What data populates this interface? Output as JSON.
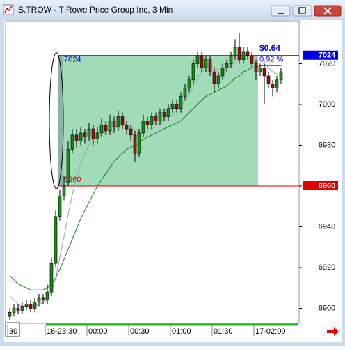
{
  "chart_data": {
    "type": "candlestick",
    "title": "S.TROW - T Rowe Price Group Inc, 3 Min",
    "categories": [
      "30",
      null,
      null,
      null,
      null,
      null,
      null,
      null,
      null,
      "16-23:30",
      null,
      null,
      null,
      null,
      null,
      null,
      null,
      null,
      null,
      "00:00",
      null,
      null,
      null,
      null,
      null,
      null,
      null,
      null,
      null,
      "00:30",
      null,
      null,
      null,
      null,
      null,
      null,
      null,
      null,
      null,
      "01:00",
      null,
      null,
      null,
      null,
      null,
      null,
      null,
      null,
      null,
      "01:30",
      null,
      null,
      null,
      null,
      null,
      null,
      null,
      null,
      null,
      "17-02:00",
      null,
      null,
      null,
      null,
      null,
      null
    ],
    "open": [
      6896,
      6898,
      6900,
      6899,
      6901,
      6902,
      6900,
      6903,
      6905,
      6904,
      6908,
      6922,
      6945,
      6955,
      6962,
      6978,
      6985,
      6982,
      6986,
      6984,
      6988,
      6983,
      6986,
      6990,
      6987,
      6992,
      6989,
      6994,
      6990,
      6988,
      6985,
      6976,
      6986,
      6992,
      6990,
      6994,
      6992,
      6996,
      6994,
      6998,
      7000,
      6998,
      7004,
      7008,
      7012,
      7020,
      7024,
      7018,
      7022,
      7016,
      7010,
      7014,
      7018,
      7020,
      7024,
      7028,
      7022,
      7026,
      7024,
      7020,
      7016,
      7018,
      7014,
      7010,
      7008,
      7012
    ],
    "high": [
      6900,
      6902,
      6902,
      6903,
      6904,
      6904,
      6905,
      6907,
      6907,
      6912,
      6925,
      6948,
      6958,
      6965,
      6982,
      6988,
      6988,
      6989,
      6988,
      6991,
      6990,
      6989,
      6993,
      6992,
      6995,
      6994,
      6997,
      6996,
      6992,
      6990,
      6987,
      6988,
      6995,
      6994,
      6996,
      6996,
      6998,
      6998,
      7000,
      7002,
      7002,
      7006,
      7010,
      7014,
      7022,
      7026,
      7026,
      7024,
      7024,
      7018,
      7016,
      7020,
      7022,
      7026,
      7032,
      7035,
      7028,
      7028,
      7026,
      7022,
      7020,
      7020,
      7016,
      7012,
      7014,
      7018
    ],
    "low": [
      6894,
      6896,
      6897,
      6897,
      6899,
      6898,
      6898,
      6901,
      6902,
      6902,
      6906,
      6920,
      6943,
      6953,
      6960,
      6976,
      6979,
      6980,
      6981,
      6982,
      6980,
      6981,
      6984,
      6985,
      6985,
      6986,
      6987,
      6988,
      6985,
      6982,
      6972,
      6974,
      6984,
      6988,
      6988,
      6990,
      6990,
      6992,
      6992,
      6996,
      6996,
      6996,
      7002,
      7006,
      7010,
      7018,
      7016,
      7016,
      7014,
      7006,
      7008,
      7012,
      7016,
      7018,
      7022,
      7020,
      7020,
      7022,
      7018,
      7012,
      7014,
      7000,
      7008,
      7004,
      7006,
      7010
    ],
    "close": [
      6898,
      6900,
      6899,
      6901,
      6902,
      6900,
      6903,
      6905,
      6904,
      6908,
      6922,
      6945,
      6955,
      6960,
      6978,
      6985,
      6982,
      6986,
      6984,
      6988,
      6983,
      6986,
      6990,
      6987,
      6992,
      6989,
      6994,
      6990,
      6988,
      6985,
      6976,
      6986,
      6992,
      6990,
      6994,
      6992,
      6996,
      6994,
      6998,
      7000,
      6998,
      7004,
      7008,
      7012,
      7020,
      7024,
      7018,
      7022,
      7016,
      7010,
      7014,
      7018,
      7020,
      7024,
      7028,
      7022,
      7026,
      7024,
      7020,
      7016,
      7018,
      7014,
      7010,
      7008,
      7012,
      7016
    ],
    "up_color": "#1a8a1a",
    "down_color": "#a01010",
    "lines": [
      {
        "color": "#1f7a1f",
        "values": [
          6916,
          6914,
          6912,
          6911,
          6910,
          6909,
          6909,
          6909,
          6909,
          6910,
          6912,
          6915,
          6919,
          6924,
          6929,
          6934,
          6939,
          6944,
          6948,
          6952,
          6956,
          6960,
          6963,
          6966,
          6969,
          6972,
          6974,
          6976,
          6978,
          6979,
          6980,
          6981,
          6983,
          6984,
          6985,
          6986,
          6987,
          6988,
          6989,
          6990,
          6991,
          6992,
          6994,
          6996,
          6998,
          7000,
          7002,
          7004,
          7005,
          7006,
          7007,
          7008,
          7009,
          7011,
          7013,
          7014,
          7016,
          7017,
          7018,
          7018,
          7019,
          7019,
          7019,
          7019,
          7019,
          7019
        ]
      },
      {
        "color": "#a0a0a0",
        "values": [
          6906,
          6904,
          6902,
          6901,
          6901,
          6901,
          6901,
          6902,
          6903,
          6904,
          6908,
          6915,
          6925,
          6935,
          6946,
          6956,
          6964,
          6971,
          6976,
          6980,
          6983,
          6984,
          6985,
          6986,
          6987,
          6988,
          6989,
          6990,
          6990,
          6989,
          6987,
          6986,
          6986,
          6987,
          6988,
          6989,
          6991,
          6992,
          6994,
          6995,
          6997,
          6999,
          7002,
          7005,
          7009,
          7013,
          7016,
          7018,
          7019,
          7018,
          7017,
          7017,
          7018,
          7019,
          7021,
          7022,
          7023,
          7024,
          7024,
          7023,
          7022,
          7020,
          7018,
          7016,
          7015,
          7014
        ]
      }
    ],
    "ylim": [
      6893,
      7041
    ],
    "yticks": [
      6900,
      6920,
      6940,
      6960,
      6980,
      7000,
      7020
    ],
    "range_box": {
      "start": 12,
      "end": 59,
      "high": 7024,
      "low": 6960,
      "change": "$0.64",
      "percent": "0.92 %",
      "fill": "#9dd9b3",
      "high_color": "#0000e0",
      "low_color": "#e00000"
    }
  }
}
